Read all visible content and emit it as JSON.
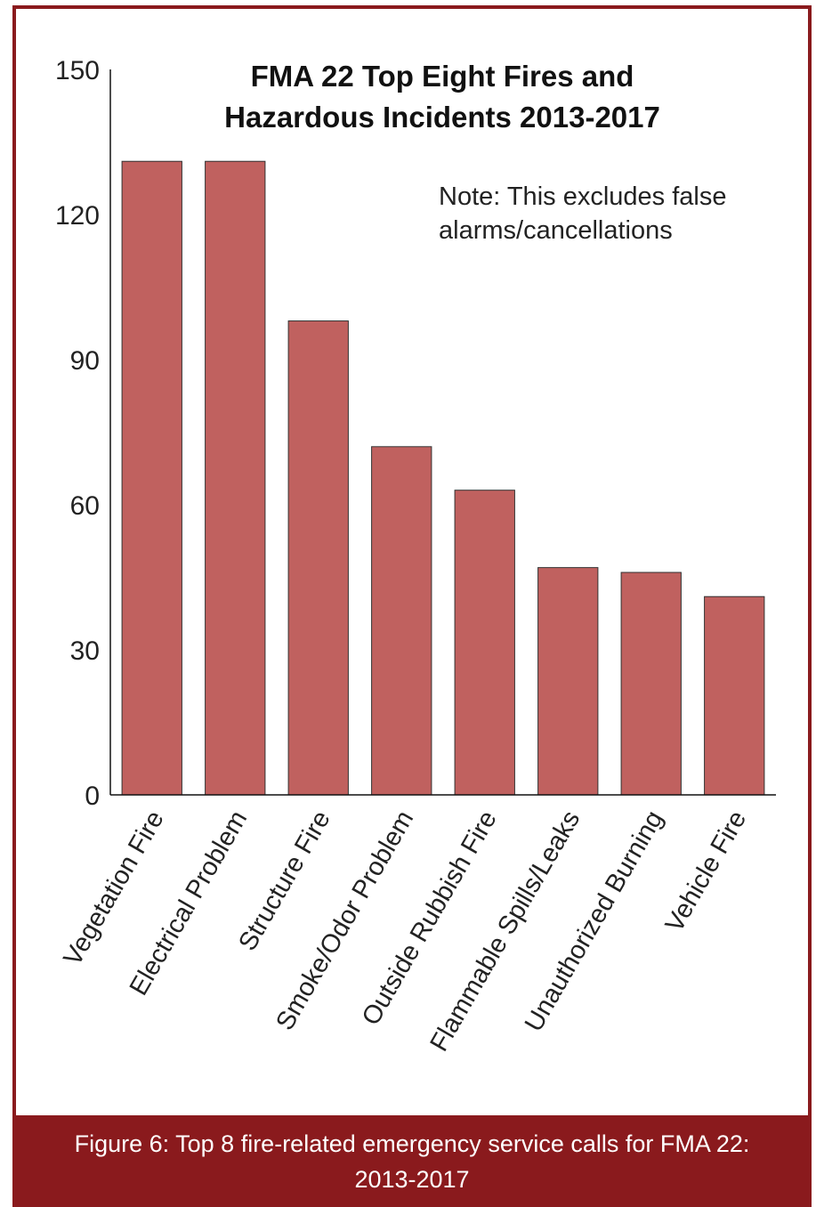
{
  "chart_data": {
    "type": "bar",
    "title_lines": [
      "FMA 22 Top Eight Fires and",
      "Hazardous Incidents 2013-2017"
    ],
    "annotation_lines": [
      "Note: This excludes false",
      "alarms/cancellations"
    ],
    "categories": [
      "Vegetation Fire",
      "Electrical Problem",
      "Structure Fire",
      "Smoke/Odor Problem",
      "Outside Rubbish Fire",
      "Flammable Spills/Leaks",
      "Unauthorized Burning",
      "Vehicle Fire"
    ],
    "values": [
      131,
      131,
      98,
      72,
      63,
      47,
      46,
      41
    ],
    "ylim": [
      0,
      150
    ],
    "yticks": [
      0,
      30,
      60,
      90,
      120,
      150
    ],
    "bar_color": "#c0615f",
    "grid": false,
    "legend": "none"
  },
  "caption": {
    "line1": "Figure 6: Top 8 fire-related emergency service calls for FMA 22:",
    "line2": "2013-2017"
  },
  "colors": {
    "frame": "#8a1a1d",
    "caption_bg": "#8a1a1d",
    "caption_text": "#ffffff"
  }
}
